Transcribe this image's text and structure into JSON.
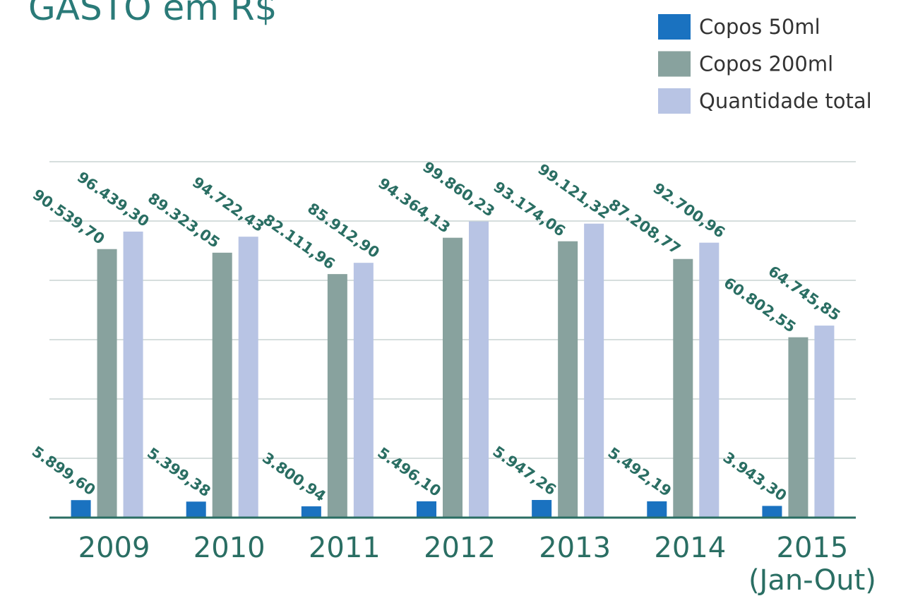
{
  "chart_data": {
    "type": "bar",
    "title": "GASTO em R$",
    "categories": [
      "2009",
      "2010",
      "2011",
      "2012",
      "2013",
      "2014",
      "2015 (Jan-Out)"
    ],
    "series": [
      {
        "name": "Copos 50ml",
        "color": "#1a72c0",
        "values": [
          5899.6,
          5399.38,
          3800.94,
          5496.1,
          5947.26,
          5492.19,
          3943.3
        ],
        "value_labels": [
          "5.899,60",
          "5.399,38",
          "3.800,94",
          "5.496,10",
          "5.947,26",
          "5.492,19",
          "3.943,30"
        ]
      },
      {
        "name": "Copos 200ml",
        "color": "#88a29e",
        "values": [
          90539.7,
          89323.05,
          82111.96,
          94364.13,
          93174.06,
          87208.77,
          60802.55
        ],
        "value_labels": [
          "90.539,70",
          "89.323,05",
          "82.111,96",
          "94.364,13",
          "93.174,06",
          "87.208,77",
          "60.802,55"
        ]
      },
      {
        "name": "Quantidade total",
        "color": "#b8c4e4",
        "values": [
          96439.3,
          94722.43,
          85912.9,
          99860.23,
          99121.32,
          92700.96,
          64745.85
        ],
        "value_labels": [
          "96.439,30",
          "94.722,43",
          "85.912,90",
          "99.860,23",
          "99.121,32",
          "92.700,96",
          "64.745,85"
        ]
      }
    ],
    "ylim": [
      0,
      120000
    ],
    "yticks": [
      0,
      20000,
      40000,
      60000,
      80000,
      100000,
      120000
    ],
    "grid": true,
    "legend": "top-right"
  }
}
